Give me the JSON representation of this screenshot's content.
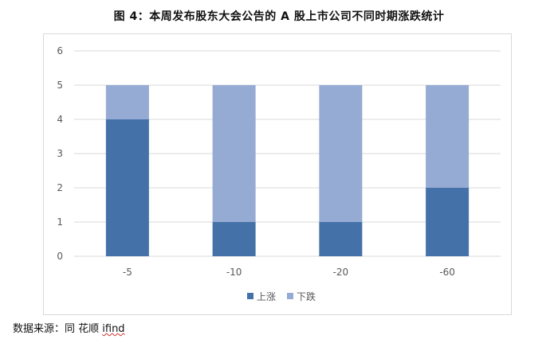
{
  "title": "图 4：本周发布股东大会公告的 A 股上市公司不同时期涨跌统计",
  "source": {
    "prefix": "数据来源：同 花顺 ",
    "brand": "ifind"
  },
  "chart_data": {
    "type": "bar",
    "stacked": true,
    "categories": [
      "-5",
      "-10",
      "-20",
      "-60"
    ],
    "series": [
      {
        "name": "上涨",
        "values": [
          4,
          1,
          1,
          2
        ],
        "color": "#4472a8"
      },
      {
        "name": "下跌",
        "values": [
          1,
          4,
          4,
          3
        ],
        "color": "#95abd3"
      }
    ],
    "ylim": [
      0,
      6
    ],
    "yticks": [
      "0",
      "1",
      "2",
      "3",
      "4",
      "5",
      "6"
    ],
    "grid": true,
    "legend": "bottom-center"
  }
}
